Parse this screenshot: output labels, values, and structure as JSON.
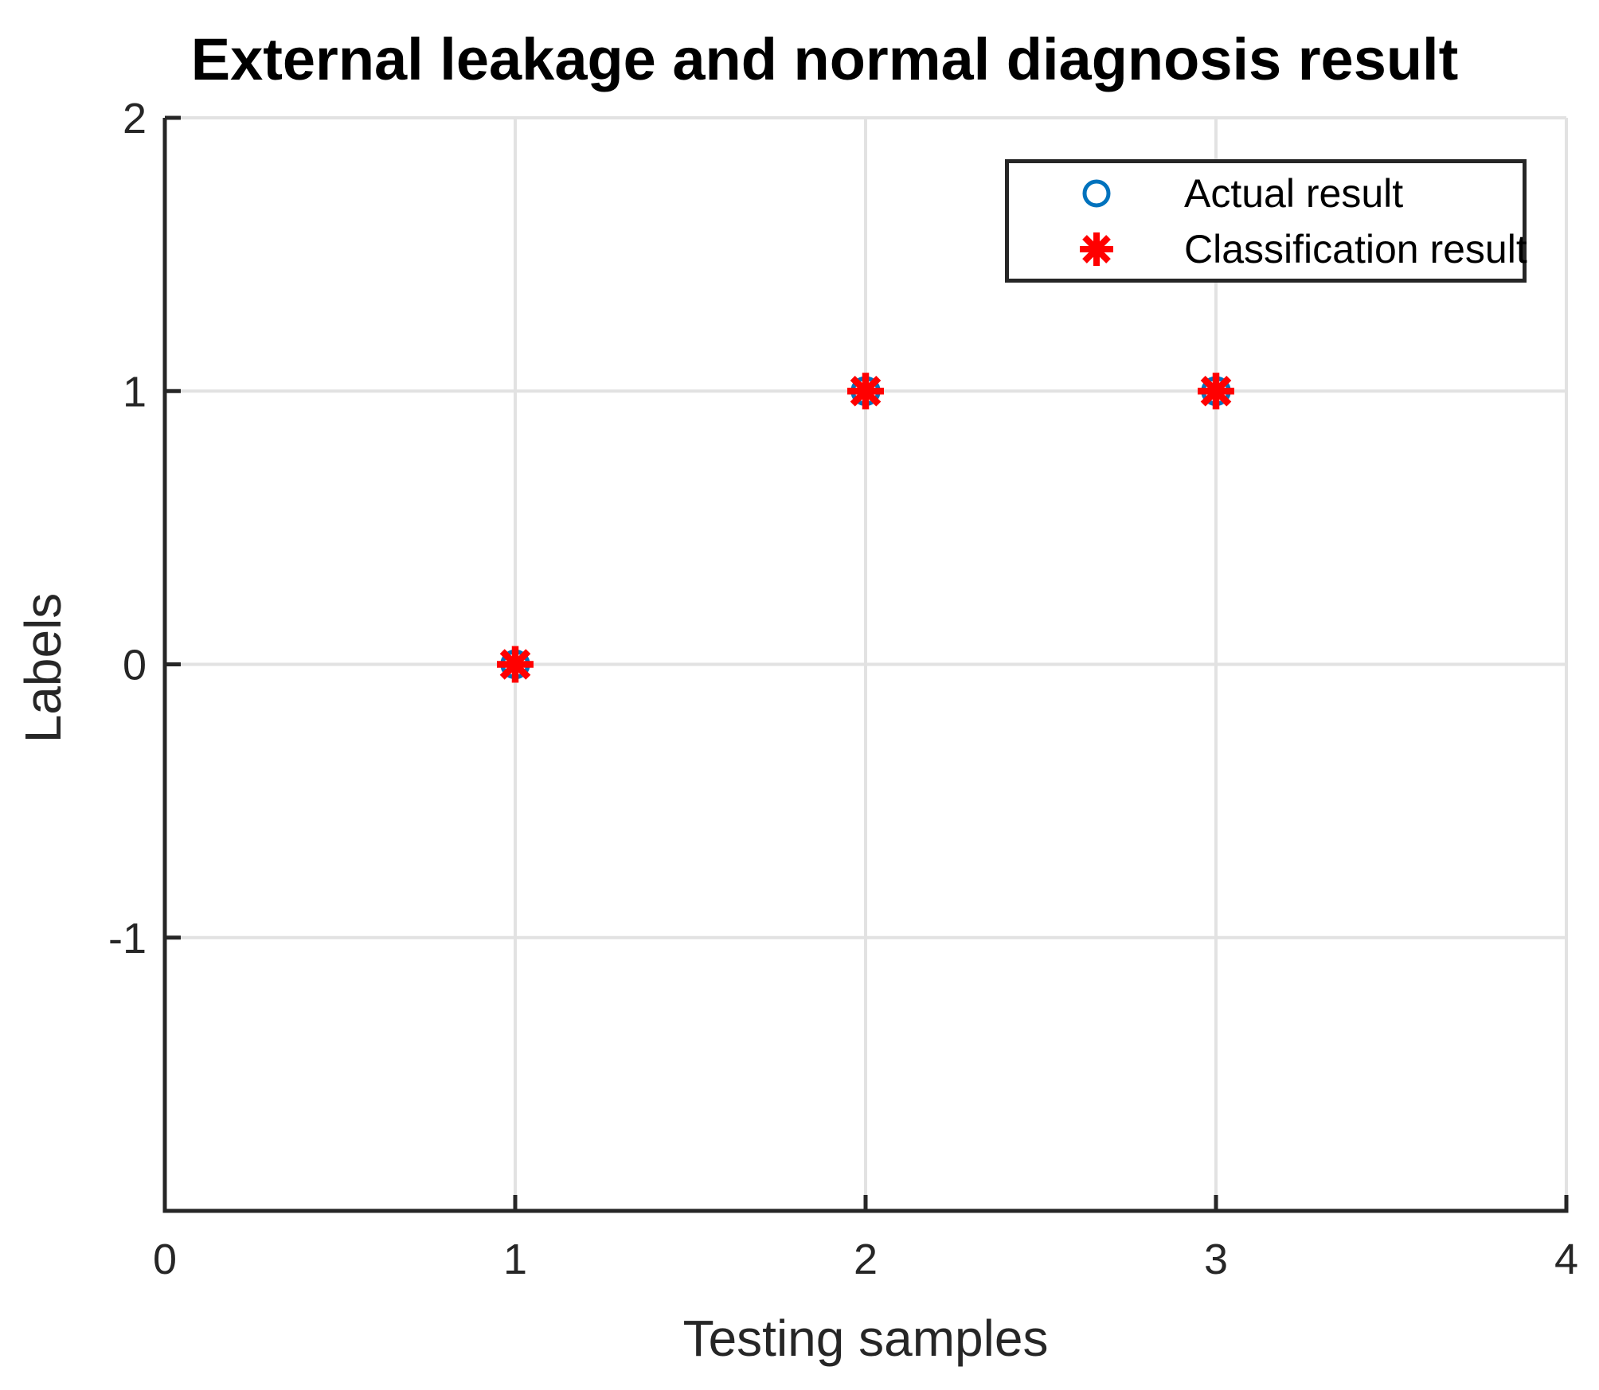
{
  "chart_data": {
    "type": "scatter",
    "title": "External leakage and normal diagnosis result",
    "xlabel": "Testing samples",
    "ylabel": "Labels",
    "xlim": [
      0,
      4
    ],
    "ylim": [
      -2,
      2
    ],
    "xticks": [
      "0",
      "1",
      "2",
      "3",
      "4"
    ],
    "xtick_values": [
      0,
      1,
      2,
      3,
      4
    ],
    "yticks": [
      "-1",
      "0",
      "1",
      "2"
    ],
    "ytick_values": [
      -1,
      0,
      1,
      2
    ],
    "grid": true,
    "legend_position": "top-right",
    "x": [
      1,
      2,
      3
    ],
    "series": [
      {
        "name": "Actual result",
        "marker": "circle",
        "color": "#0072BD",
        "values": [
          0,
          1,
          1
        ]
      },
      {
        "name": "Classification result",
        "marker": "asterisk",
        "color": "#FF0000",
        "values": [
          0,
          1,
          1
        ]
      }
    ],
    "colors": {
      "title": "#000000",
      "axis": "#262626",
      "axis_label": "#262626",
      "tick_label": "#262626",
      "grid": "#E2E2E2",
      "background": "#FFFFFF",
      "legend_border": "#262626"
    }
  }
}
